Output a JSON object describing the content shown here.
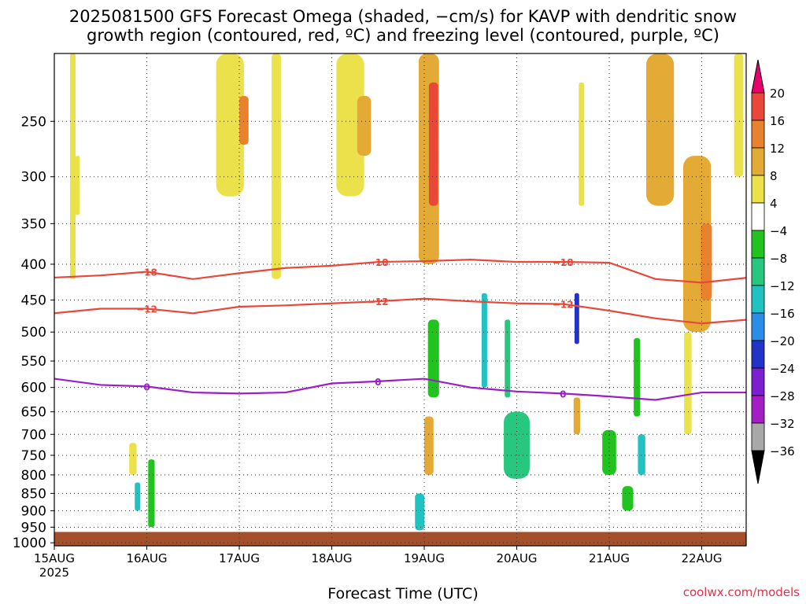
{
  "title": {
    "line1": "2025081500 GFS Forecast Omega (shaded, −cm/s) for KAVP with dendritic snow",
    "line2": "growth region (contoured, red, ºC) and freezing level (contoured, purple, ºC)"
  },
  "credit": "coolwx.com/models",
  "chart_data": {
    "type": "heatmap",
    "xlabel": "Forecast Time (UTC)",
    "x_ticks": [
      "15AUG",
      "16AUG",
      "17AUG",
      "18AUG",
      "19AUG",
      "20AUG",
      "21AUG",
      "22AUG"
    ],
    "x_year_label": "2025",
    "xlim_days": [
      0,
      7.5
    ],
    "ylabel": "",
    "y_ticks": [
      250,
      300,
      350,
      400,
      450,
      500,
      550,
      600,
      650,
      700,
      750,
      800,
      850,
      900,
      950,
      1000
    ],
    "ylim_hpa": [
      1010,
      200
    ],
    "colorbar": {
      "labels": [
        "20",
        "16",
        "12",
        "8",
        "4",
        "−4",
        "−8",
        "−12",
        "−16",
        "−20",
        "−24",
        "−28",
        "−32",
        "−36"
      ],
      "bins": [
        {
          "lo": 20,
          "hi": 99,
          "color": "#e8006b"
        },
        {
          "lo": 16,
          "hi": 20,
          "color": "#e8473a"
        },
        {
          "lo": 12,
          "hi": 16,
          "color": "#e8822d"
        },
        {
          "lo": 8,
          "hi": 12,
          "color": "#e3aa36"
        },
        {
          "lo": 4,
          "hi": 8,
          "color": "#ebe14a"
        },
        {
          "lo": -4,
          "hi": 4,
          "color": "#ffffff"
        },
        {
          "lo": -8,
          "hi": -4,
          "color": "#22c31f"
        },
        {
          "lo": -12,
          "hi": -8,
          "color": "#27c77f"
        },
        {
          "lo": -16,
          "hi": -12,
          "color": "#20c2c2"
        },
        {
          "lo": -20,
          "hi": -16,
          "color": "#2a8ee8"
        },
        {
          "lo": -24,
          "hi": -20,
          "color": "#2333c8"
        },
        {
          "lo": -28,
          "hi": -24,
          "color": "#7b1fd0"
        },
        {
          "lo": -32,
          "hi": -28,
          "color": "#a41fc3"
        },
        {
          "lo": -36,
          "hi": -32,
          "color": "#a8a8a8"
        },
        {
          "lo": -99,
          "hi": -36,
          "color": "#000000"
        }
      ]
    },
    "omega_regions": [
      {
        "day": 0.2,
        "p0": 200,
        "p1": 420,
        "w": 0.06,
        "v": 5
      },
      {
        "day": 0.25,
        "p0": 280,
        "p1": 340,
        "w": 0.05,
        "v": 5
      },
      {
        "day": 0.85,
        "p0": 720,
        "p1": 800,
        "w": 0.08,
        "v": 6
      },
      {
        "day": 0.9,
        "p0": 820,
        "p1": 900,
        "w": 0.06,
        "v": -14
      },
      {
        "day": 1.05,
        "p0": 760,
        "p1": 950,
        "w": 0.07,
        "v": -7
      },
      {
        "day": 1.9,
        "p0": 200,
        "p1": 320,
        "w": 0.3,
        "v": 6
      },
      {
        "day": 2.05,
        "p0": 230,
        "p1": 270,
        "w": 0.1,
        "v": 13
      },
      {
        "day": 2.4,
        "p0": 200,
        "p1": 420,
        "w": 0.1,
        "v": 5
      },
      {
        "day": 3.2,
        "p0": 200,
        "p1": 320,
        "w": 0.3,
        "v": 7
      },
      {
        "day": 3.35,
        "p0": 230,
        "p1": 280,
        "w": 0.15,
        "v": 11
      },
      {
        "day": 4.05,
        "p0": 200,
        "p1": 400,
        "w": 0.22,
        "v": 8
      },
      {
        "day": 4.1,
        "p0": 220,
        "p1": 330,
        "w": 0.1,
        "v": 17
      },
      {
        "day": 4.05,
        "p0": 660,
        "p1": 800,
        "w": 0.1,
        "v": 9
      },
      {
        "day": 3.95,
        "p0": 850,
        "p1": 960,
        "w": 0.1,
        "v": -16
      },
      {
        "day": 4.1,
        "p0": 480,
        "p1": 620,
        "w": 0.12,
        "v": -6
      },
      {
        "day": 4.65,
        "p0": 440,
        "p1": 600,
        "w": 0.06,
        "v": -14
      },
      {
        "day": 4.9,
        "p0": 480,
        "p1": 620,
        "w": 0.06,
        "v": -12
      },
      {
        "day": 5.0,
        "p0": 650,
        "p1": 810,
        "w": 0.28,
        "v": -10
      },
      {
        "day": 5.7,
        "p0": 220,
        "p1": 330,
        "w": 0.06,
        "v": 5
      },
      {
        "day": 5.65,
        "p0": 440,
        "p1": 520,
        "w": 0.05,
        "v": -22
      },
      {
        "day": 5.65,
        "p0": 620,
        "p1": 700,
        "w": 0.07,
        "v": 10
      },
      {
        "day": 6.0,
        "p0": 690,
        "p1": 800,
        "w": 0.15,
        "v": -8
      },
      {
        "day": 6.3,
        "p0": 510,
        "p1": 660,
        "w": 0.07,
        "v": -6
      },
      {
        "day": 6.35,
        "p0": 700,
        "p1": 800,
        "w": 0.08,
        "v": -14
      },
      {
        "day": 6.2,
        "p0": 830,
        "p1": 900,
        "w": 0.12,
        "v": -7
      },
      {
        "day": 6.55,
        "p0": 200,
        "p1": 330,
        "w": 0.3,
        "v": 8
      },
      {
        "day": 6.95,
        "p0": 280,
        "p1": 500,
        "w": 0.3,
        "v": 9
      },
      {
        "day": 7.05,
        "p0": 350,
        "p1": 450,
        "w": 0.12,
        "v": 13
      },
      {
        "day": 6.85,
        "p0": 500,
        "p1": 700,
        "w": 0.08,
        "v": 5
      },
      {
        "day": 7.4,
        "p0": 200,
        "p1": 300,
        "w": 0.1,
        "v": 5
      }
    ],
    "dendritic_contours": [
      {
        "label": "−18",
        "days": [
          0,
          0.5,
          1.0,
          1.5,
          2.0,
          2.5,
          3.0,
          3.5,
          4.0,
          4.5,
          5.0,
          5.5,
          6.0,
          6.5,
          7.0,
          7.5
        ],
        "p": [
          418,
          415,
          410,
          420,
          412,
          405,
          402,
          397,
          396,
          394,
          397,
          397,
          398,
          420,
          425,
          418
        ]
      },
      {
        "label": "−12",
        "days": [
          0,
          0.5,
          1.0,
          1.5,
          2.0,
          2.5,
          3.0,
          3.5,
          4.0,
          4.5,
          5.0,
          5.5,
          6.0,
          6.5,
          7.0,
          7.5
        ],
        "p": [
          470,
          463,
          463,
          470,
          460,
          458,
          455,
          452,
          448,
          452,
          455,
          456,
          466,
          478,
          486,
          480
        ]
      }
    ],
    "freezing_contour": {
      "label": "0",
      "days": [
        0,
        0.5,
        1.0,
        1.5,
        2.0,
        2.5,
        3.0,
        3.5,
        4.0,
        4.5,
        5.0,
        5.5,
        6.0,
        6.5,
        7.0,
        7.5
      ],
      "p": [
        583,
        595,
        598,
        610,
        612,
        610,
        592,
        588,
        583,
        600,
        608,
        612,
        618,
        625,
        610,
        610
      ]
    },
    "surface": {
      "p": 965,
      "color": "#a4502b"
    }
  }
}
